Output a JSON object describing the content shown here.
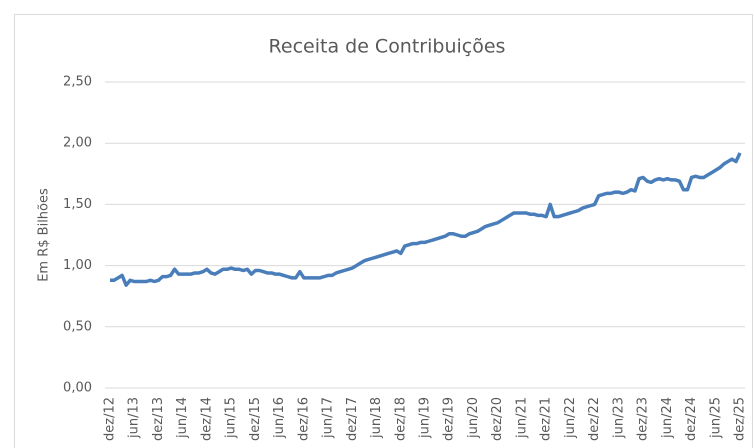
{
  "chart_data": {
    "type": "line",
    "title": "Receita de Contribuições",
    "y_label": "Em R$ Bilhões",
    "categories": [
      "dez/12",
      null,
      null,
      null,
      null,
      null,
      "jun/13",
      null,
      null,
      null,
      null,
      null,
      "dez/13",
      null,
      null,
      null,
      null,
      null,
      "jun/14",
      null,
      null,
      null,
      null,
      null,
      "dez/14",
      null,
      null,
      null,
      null,
      null,
      "jun/15",
      null,
      null,
      null,
      null,
      null,
      "dez/15",
      null,
      null,
      null,
      null,
      null,
      "jun/16",
      null,
      null,
      null,
      null,
      null,
      "dez/16",
      null,
      null,
      null,
      null,
      null,
      "jun/17",
      null,
      null,
      null,
      null,
      null,
      "dez/17",
      null,
      null,
      null,
      null,
      null,
      "jun/18",
      null,
      null,
      null,
      null,
      null,
      "dez/18",
      null,
      null,
      null,
      null,
      null,
      "jun/19",
      null,
      null,
      null,
      null,
      null,
      "dez/19",
      null,
      null,
      null,
      null,
      null,
      "jun/20",
      null,
      null,
      null,
      null,
      null,
      "dez/20",
      null,
      null,
      null,
      null,
      null,
      "jun/21",
      null,
      null,
      null,
      null,
      null,
      "dez/21",
      null,
      null,
      null,
      null,
      null,
      "jun/22",
      null,
      null,
      null,
      null,
      null,
      "dez/22",
      null,
      null,
      null,
      null,
      null,
      "jun/23",
      null,
      null,
      null,
      null,
      null,
      "dez/23",
      null,
      null,
      null,
      null,
      null,
      "jun/24",
      null,
      null,
      null,
      null,
      null,
      "dez/24",
      null,
      null,
      null,
      null,
      null,
      "jun/25",
      null,
      null,
      null,
      null,
      null,
      "dez/25"
    ],
    "series": [
      {
        "name": "Receita de Contribuições",
        "color": "#4a7ebb",
        "values": [
          0.88,
          0.88,
          0.9,
          0.92,
          0.84,
          0.88,
          0.87,
          0.87,
          0.87,
          0.87,
          0.88,
          0.87,
          0.88,
          0.91,
          0.91,
          0.92,
          0.97,
          0.93,
          0.93,
          0.93,
          0.93,
          0.94,
          0.94,
          0.95,
          0.97,
          0.94,
          0.93,
          0.95,
          0.97,
          0.97,
          0.98,
          0.97,
          0.97,
          0.96,
          0.97,
          0.93,
          0.96,
          0.96,
          0.95,
          0.94,
          0.94,
          0.93,
          0.93,
          0.92,
          0.91,
          0.9,
          0.9,
          0.95,
          0.9,
          0.9,
          0.9,
          0.9,
          0.9,
          0.91,
          0.92,
          0.92,
          0.94,
          0.95,
          0.96,
          0.97,
          0.98,
          1.0,
          1.02,
          1.04,
          1.05,
          1.06,
          1.07,
          1.08,
          1.09,
          1.1,
          1.11,
          1.12,
          1.1,
          1.16,
          1.17,
          1.18,
          1.18,
          1.19,
          1.19,
          1.2,
          1.21,
          1.22,
          1.23,
          1.24,
          1.26,
          1.26,
          1.25,
          1.24,
          1.24,
          1.26,
          1.27,
          1.28,
          1.3,
          1.32,
          1.33,
          1.34,
          1.35,
          1.37,
          1.39,
          1.41,
          1.43,
          1.43,
          1.43,
          1.43,
          1.42,
          1.42,
          1.41,
          1.41,
          1.4,
          1.5,
          1.4,
          1.4,
          1.41,
          1.42,
          1.43,
          1.44,
          1.45,
          1.47,
          1.48,
          1.49,
          1.5,
          1.57,
          1.58,
          1.59,
          1.59,
          1.6,
          1.6,
          1.59,
          1.6,
          1.62,
          1.61,
          1.71,
          1.72,
          1.69,
          1.68,
          1.7,
          1.71,
          1.7,
          1.71,
          1.7,
          1.7,
          1.69,
          1.62,
          1.62,
          1.72,
          1.73,
          1.72,
          1.72,
          1.74,
          1.76,
          1.78,
          1.8,
          1.83,
          1.85,
          1.87,
          1.85,
          1.92
        ]
      }
    ],
    "ylim": [
      0,
      2.5
    ],
    "yticks": [
      {
        "value": 0,
        "label": "0,00"
      },
      {
        "value": 0.5,
        "label": "0,50"
      },
      {
        "value": 1,
        "label": "1,00"
      },
      {
        "value": 1.5,
        "label": "1,50"
      },
      {
        "value": 2,
        "label": "2,00"
      },
      {
        "value": 2.5,
        "label": "2,50"
      }
    ],
    "grid": true
  }
}
